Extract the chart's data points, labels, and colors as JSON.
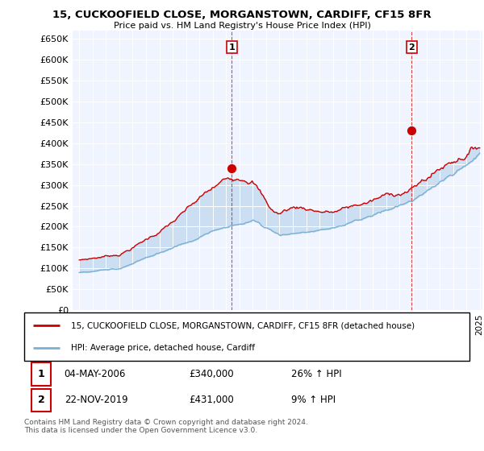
{
  "title": "15, CUCKOOFIELD CLOSE, MORGANSTOWN, CARDIFF, CF15 8FR",
  "subtitle": "Price paid vs. HM Land Registry's House Price Index (HPI)",
  "property_label": "15, CUCKOOFIELD CLOSE, MORGANSTOWN, CARDIFF, CF15 8FR (detached house)",
  "hpi_label": "HPI: Average price, detached house, Cardiff",
  "sale1_date": "04-MAY-2006",
  "sale1_price": 340000,
  "sale1_hpi_pct": "26%",
  "sale2_date": "22-NOV-2019",
  "sale2_price": 431000,
  "sale2_hpi_pct": "9%",
  "footnote": "Contains HM Land Registry data © Crown copyright and database right 2024.\nThis data is licensed under the Open Government Licence v3.0.",
  "property_color": "#cc0000",
  "hpi_color": "#7ab0d4",
  "fill_color": "#ddeeff",
  "background_color": "#f0f4ff",
  "grid_color": "#c8d4e8",
  "ylim": [
    0,
    670000
  ],
  "yticks": [
    0,
    50000,
    100000,
    150000,
    200000,
    250000,
    300000,
    350000,
    400000,
    450000,
    500000,
    550000,
    600000,
    650000
  ],
  "sale1_year": 2006.42,
  "sale2_year": 2019.9,
  "xmin": 1995,
  "xmax": 2025
}
